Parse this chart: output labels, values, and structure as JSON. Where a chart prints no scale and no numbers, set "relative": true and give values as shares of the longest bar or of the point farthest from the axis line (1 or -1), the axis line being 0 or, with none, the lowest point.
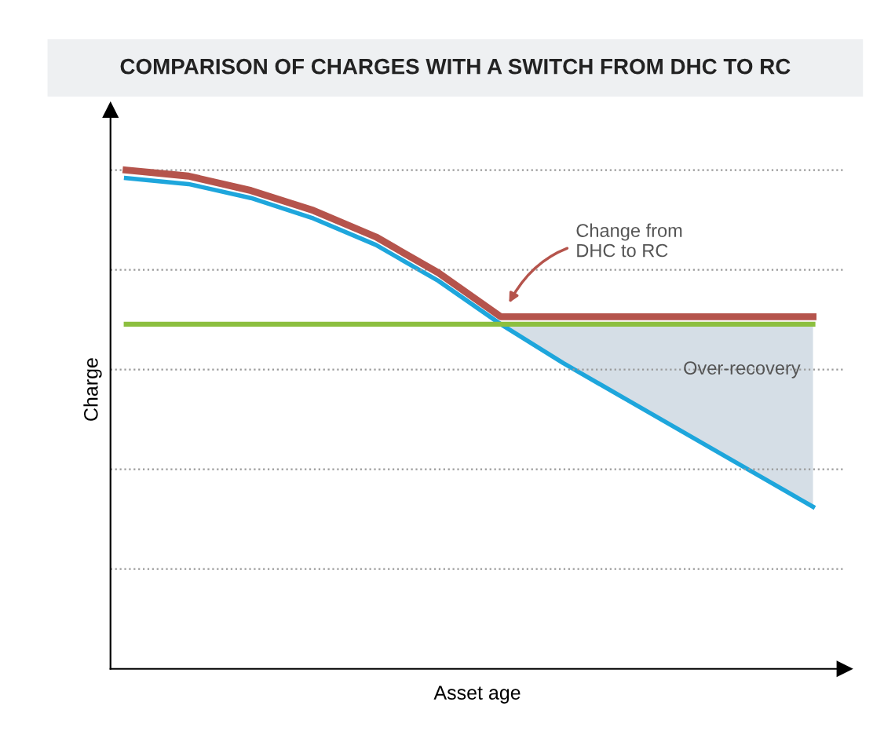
{
  "chart_data": {
    "type": "line",
    "title": "COMPARISON OF CHARGES WITH A SWITCH FROM DHC TO RC",
    "xlabel": "Asset age",
    "ylabel": "Charge",
    "relative": true,
    "grid": "y",
    "categories": [
      null,
      null,
      null,
      null,
      null,
      null,
      null,
      null,
      null,
      null,
      null,
      null
    ],
    "series": [
      {
        "color": "#b5544c",
        "values": [
          1.0,
          0.988,
          0.959,
          0.919,
          0.866,
          0.794,
          0.706,
          0.706,
          0.706,
          0.706,
          0.706,
          0.706
        ]
      },
      {
        "color": "#8cbf3f",
        "values": [
          0.691,
          0.691,
          0.691,
          0.691,
          0.691,
          0.691,
          0.691,
          0.691,
          0.691,
          0.691,
          0.691,
          0.691
        ]
      },
      {
        "color": "#1ea6dc",
        "values": [
          0.984,
          0.972,
          0.944,
          0.903,
          0.85,
          0.778,
          0.691,
          0.613,
          0.541,
          0.469,
          0.397,
          0.325
        ],
        "lower": [
          null,
          null,
          null,
          null,
          null,
          null,
          0.691,
          0.613,
          0.541,
          0.469,
          0.397,
          0.325
        ],
        "upper": [
          null,
          null,
          null,
          null,
          null,
          null,
          0.691,
          0.691,
          0.691,
          0.691,
          0.691,
          0.691
        ]
      }
    ],
    "annotations": [
      "Change from\nDHC to RC",
      "Over-recovery"
    ]
  }
}
